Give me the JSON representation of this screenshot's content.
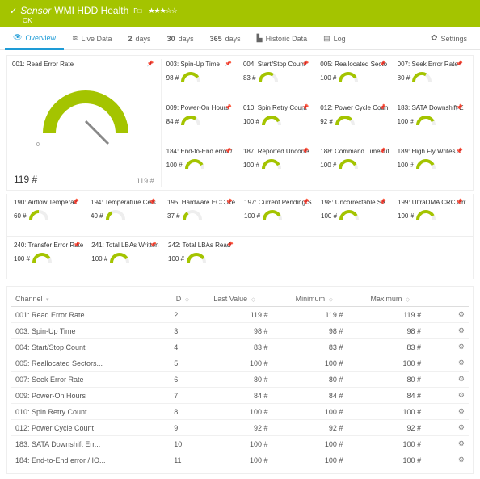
{
  "header": {
    "check": "✓",
    "title_prefix": "Sensor",
    "title_name": "WMI HDD Health",
    "superscript": "P□",
    "stars": "★★★☆☆",
    "status": "OK"
  },
  "tabs": {
    "overview": {
      "icon": "👁",
      "label": "Overview"
    },
    "live": {
      "icon": "≋",
      "label": "Live Data"
    },
    "days2": {
      "num": "2",
      "label": "days"
    },
    "days30": {
      "num": "30",
      "label": "days"
    },
    "days365": {
      "num": "365",
      "label": "days"
    },
    "historic": {
      "icon": "▙",
      "label": "Historic Data"
    },
    "log": {
      "icon": "▤",
      "label": "Log"
    },
    "settings": {
      "icon": "✿",
      "label": "Settings"
    }
  },
  "colors": {
    "accent": "#a4c400",
    "tab_active": "#1e9bd6",
    "gauge_fill": "#a4c400",
    "gauge_track": "#eeeeee",
    "text": "#555555",
    "muted": "#999999"
  },
  "big_gauge": {
    "title": "001: Read Error Rate",
    "value": "119 #",
    "min_label": "0",
    "max_label": "",
    "max_value": "119 #",
    "fill_pct": 100
  },
  "gauges_grid": [
    {
      "title": "003: Spin-Up Time",
      "value": "98 #",
      "pct": 82
    },
    {
      "title": "004: Start/Stop Count",
      "value": "83 #",
      "pct": 70
    },
    {
      "title": "005: Reallocated Secto",
      "value": "100 #",
      "pct": 84
    },
    {
      "title": "007: Seek Error Rate",
      "value": "80 #",
      "pct": 67
    },
    {
      "title": "009: Power-On Hours",
      "value": "84 #",
      "pct": 71
    },
    {
      "title": "010: Spin Retry Count",
      "value": "100 #",
      "pct": 84
    },
    {
      "title": "012: Power Cycle Coun",
      "value": "92 #",
      "pct": 77
    },
    {
      "title": "183: SATA Downshift E",
      "value": "100 #",
      "pct": 84
    },
    {
      "title": "184: End-to-End error /",
      "value": "100 #",
      "pct": 84
    },
    {
      "title": "187: Reported Uncorre",
      "value": "100 #",
      "pct": 84
    },
    {
      "title": "188: Command Timeout",
      "value": "100 #",
      "pct": 84
    },
    {
      "title": "189: High Fly Writes",
      "value": "100 #",
      "pct": 84
    }
  ],
  "gauges_row2": [
    {
      "title": "190: Airflow Temperat",
      "value": "60 #",
      "pct": 50
    },
    {
      "title": "194: Temperature Cels",
      "value": "40 #",
      "pct": 34
    },
    {
      "title": "195: Hardware ECC Re",
      "value": "37 #",
      "pct": 31
    },
    {
      "title": "197: Current Pending S",
      "value": "100 #",
      "pct": 84
    },
    {
      "title": "198: Uncorrectable Se",
      "value": "100 #",
      "pct": 84
    },
    {
      "title": "199: UltraDMA CRC Err",
      "value": "100 #",
      "pct": 84
    }
  ],
  "gauges_row3": [
    {
      "title": "240: Transfer Error Rate",
      "value": "100 #",
      "pct": 84
    },
    {
      "title": "241: Total LBAs Written",
      "value": "100 #",
      "pct": 84
    },
    {
      "title": "242: Total LBAs Read",
      "value": "100 #",
      "pct": 84
    }
  ],
  "table": {
    "headers": {
      "channel": "Channel",
      "id": "ID",
      "last": "Last Value",
      "min": "Minimum",
      "max": "Maximum"
    },
    "sort_icon": "▾",
    "sort_neutral": "◇",
    "gear_icon": "⚙",
    "rows": [
      {
        "channel": "001: Read Error Rate",
        "id": "2",
        "last": "119 #",
        "min": "119 #",
        "max": "119 #"
      },
      {
        "channel": "003: Spin-Up Time",
        "id": "3",
        "last": "98 #",
        "min": "98 #",
        "max": "98 #"
      },
      {
        "channel": "004: Start/Stop Count",
        "id": "4",
        "last": "83 #",
        "min": "83 #",
        "max": "83 #"
      },
      {
        "channel": "005: Reallocated Sectors...",
        "id": "5",
        "last": "100 #",
        "min": "100 #",
        "max": "100 #"
      },
      {
        "channel": "007: Seek Error Rate",
        "id": "6",
        "last": "80 #",
        "min": "80 #",
        "max": "80 #"
      },
      {
        "channel": "009: Power-On Hours",
        "id": "7",
        "last": "84 #",
        "min": "84 #",
        "max": "84 #"
      },
      {
        "channel": "010: Spin Retry Count",
        "id": "8",
        "last": "100 #",
        "min": "100 #",
        "max": "100 #"
      },
      {
        "channel": "012: Power Cycle Count",
        "id": "9",
        "last": "92 #",
        "min": "92 #",
        "max": "92 #"
      },
      {
        "channel": "183: SATA Downshift Err...",
        "id": "10",
        "last": "100 #",
        "min": "100 #",
        "max": "100 #"
      },
      {
        "channel": "184: End-to-End error / IO...",
        "id": "11",
        "last": "100 #",
        "min": "100 #",
        "max": "100 #"
      }
    ]
  }
}
